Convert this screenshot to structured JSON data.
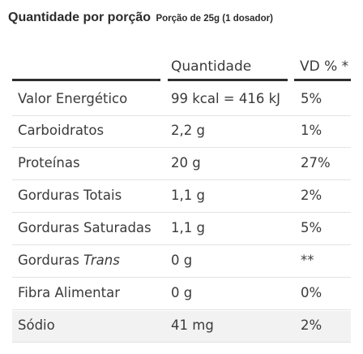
{
  "header": {
    "title": "Quantidade por porção",
    "serving": "Porção de 25g (1 dosador)"
  },
  "columns": {
    "quantity": "Quantidade",
    "dv": "VD % *"
  },
  "rows": [
    {
      "name": "Valor Energético",
      "qty": "99 kcal = 416 kJ",
      "dv": "5%"
    },
    {
      "name": "Carboidratos",
      "qty": "2,2 g",
      "dv": "1%"
    },
    {
      "name": "Proteínas",
      "qty": "20 g",
      "dv": "27%"
    },
    {
      "name": "Gorduras Totais",
      "qty": "1,1 g",
      "dv": "2%"
    },
    {
      "name": "Gorduras Saturadas",
      "qty": "1,1 g",
      "dv": "5%"
    },
    {
      "name_prefix": "Gorduras",
      "name_italic": "Trans",
      "qty": "0 g",
      "dv": "**"
    },
    {
      "name": "Fibra Alimentar",
      "qty": "0 g",
      "dv": "0%"
    },
    {
      "name": "Sódio",
      "qty": "41 mg",
      "dv": "2%"
    }
  ]
}
